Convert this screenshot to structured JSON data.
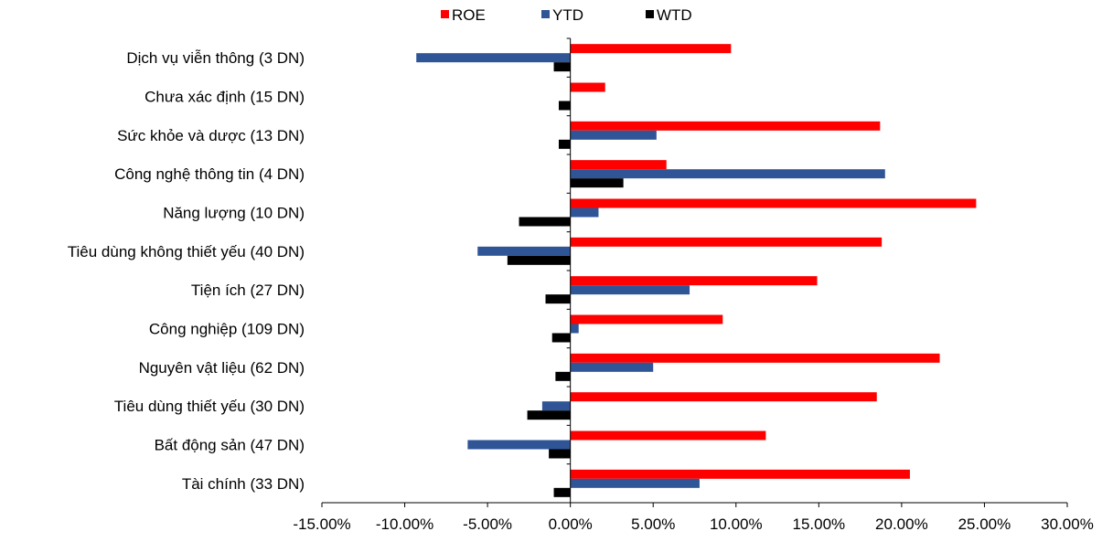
{
  "chart_data": {
    "type": "bar",
    "orientation": "horizontal",
    "categories": [
      "Dịch vụ viễn thông (3 DN)",
      "Chưa xác định (15 DN)",
      "Sức khỏe và dược (13 DN)",
      "Công nghệ thông tin (4 DN)",
      "Năng lượng (10 DN)",
      "Tiêu dùng không thiết yếu (40 DN)",
      "Tiện ích (27 DN)",
      "Công nghiệp (109 DN)",
      "Nguyên vật liệu (62 DN)",
      "Tiêu dùng thiết yếu (30 DN)",
      "Bất động sản (47 DN)",
      "Tài chính (33 DN)"
    ],
    "series": [
      {
        "name": "ROE",
        "color": "#ff0000",
        "values": [
          9.7,
          2.1,
          18.7,
          5.8,
          24.5,
          18.8,
          14.9,
          9.2,
          22.3,
          18.5,
          11.8,
          20.5
        ]
      },
      {
        "name": "YTD",
        "color": "#2f5597",
        "values": [
          -9.3,
          0.0,
          5.2,
          19.0,
          1.7,
          -5.6,
          7.2,
          0.5,
          5.0,
          -1.7,
          -6.2,
          7.8
        ]
      },
      {
        "name": "WTD",
        "color": "#000000",
        "values": [
          -1.0,
          -0.7,
          -0.7,
          3.2,
          -3.1,
          -3.8,
          -1.5,
          -1.1,
          -0.9,
          -2.6,
          -1.3,
          -1.0
        ]
      }
    ],
    "xlim": [
      -15,
      30
    ],
    "xticks": [
      "-15.00%",
      "-10.00%",
      "-5.00%",
      "0.00%",
      "5.00%",
      "10.00%",
      "15.00%",
      "20.00%",
      "25.00%",
      "30.00%"
    ],
    "xtick_values": [
      -15,
      -10,
      -5,
      0,
      5,
      10,
      15,
      20,
      25,
      30
    ],
    "grid": false,
    "legend_position": "top-center"
  }
}
